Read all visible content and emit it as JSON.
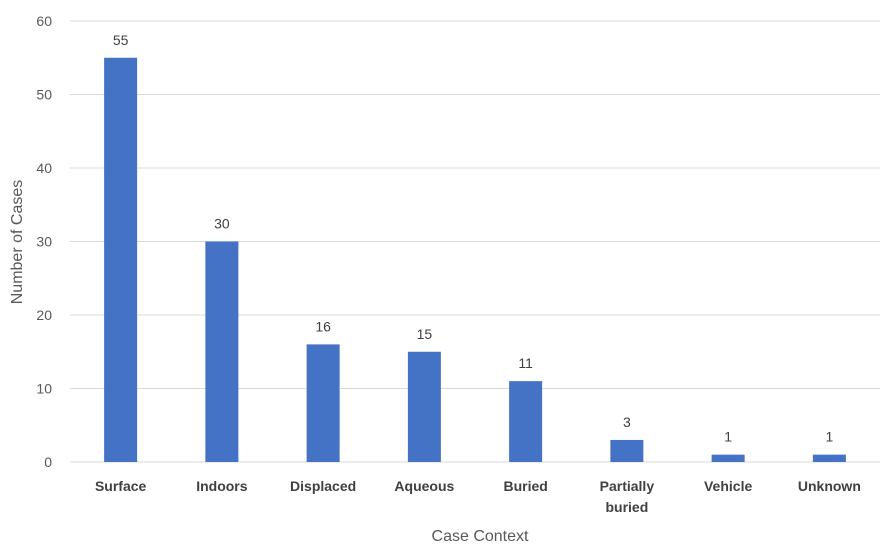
{
  "chart_data": {
    "type": "bar",
    "categories": [
      "Surface",
      "Indoors",
      "Displaced",
      "Aqueous",
      "Buried",
      "Partially buried",
      "Vehicle",
      "Unknown"
    ],
    "values": [
      55,
      30,
      16,
      15,
      11,
      3,
      1,
      1
    ],
    "data_labels": [
      "55",
      "30",
      "16",
      "15",
      "11",
      "3",
      "1",
      "1"
    ],
    "xlabel": "Case Context",
    "ylabel": "Number of Cases",
    "ylim": [
      0,
      60
    ],
    "yticks": [
      0,
      10,
      20,
      30,
      40,
      50,
      60
    ],
    "grid": true,
    "legend": "none",
    "bar_color": "#4472C4",
    "gridline_color": "#D9D9D9"
  }
}
